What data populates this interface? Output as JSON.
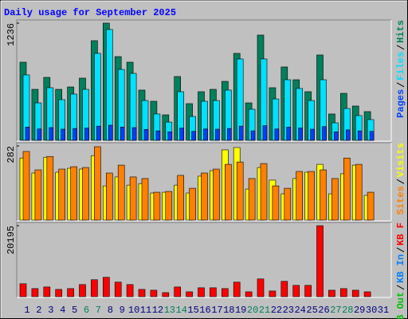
{
  "title": "Daily usage for September 2025",
  "chart_data": [
    {
      "type": "bar",
      "ylim": [
        0,
        1236
      ],
      "yticks": [
        1236
      ],
      "series": [
        {
          "name": "Hits",
          "color": "#00805c",
          "values": [
            824,
            538,
            664,
            538,
            563,
            656,
            1051,
            1236,
            883,
            824,
            530,
            412,
            269,
            673,
            387,
            513,
            538,
            622,
            917,
            395,
            1110,
            555,
            774,
            639,
            513,
            900,
            278,
            496,
            362,
            303,
            null
          ]
        },
        {
          "name": "Files",
          "color": "#00e0ff",
          "values": [
            690,
            395,
            555,
            429,
            488,
            538,
            917,
            1169,
            748,
            706,
            420,
            278,
            193,
            513,
            252,
            412,
            420,
            530,
            858,
            328,
            858,
            437,
            639,
            547,
            420,
            639,
            185,
            336,
            261,
            219,
            null
          ]
        },
        {
          "name": "Pages",
          "color": "#0040ff",
          "values": [
            140,
            120,
            135,
            118,
            125,
            130,
            150,
            160,
            140,
            135,
            115,
            100,
            90,
            130,
            95,
            120,
            118,
            125,
            150,
            100,
            155,
            120,
            140,
            130,
            118,
            145,
            90,
            110,
            100,
            95,
            null
          ]
        }
      ]
    },
    {
      "type": "bar",
      "ylim": [
        0,
        282
      ],
      "yticks": [
        282
      ],
      "series": [
        {
          "name": "Visits",
          "color": "#ffff00",
          "values": [
            236,
            179,
            239,
            182,
            197,
            194,
            245,
            130,
            164,
            133,
            139,
            103,
            106,
            133,
            103,
            167,
            188,
            267,
            276,
            118,
            200,
            152,
            100,
            158,
            182,
            212,
            100,
            176,
            209,
            94,
            null
          ]
        },
        {
          "name": "Sites",
          "color": "#ff8000",
          "values": [
            261,
            191,
            242,
            194,
            203,
            200,
            279,
            179,
            209,
            164,
            158,
            106,
            109,
            170,
            121,
            179,
            194,
            212,
            221,
            158,
            215,
            130,
            121,
            185,
            185,
            191,
            158,
            236,
            212,
            106,
            null
          ]
        }
      ]
    },
    {
      "type": "bar",
      "ylim": [
        0,
        20195
      ],
      "yticks": [
        20195
      ],
      "categories": [
        "1",
        "2",
        "3",
        "4",
        "5",
        "6",
        "7",
        "8",
        "9",
        "10",
        "11",
        "12",
        "13",
        "14",
        "15",
        "16",
        "17",
        "18",
        "19",
        "20",
        "21",
        "22",
        "23",
        "24",
        "25",
        "26",
        "27",
        "28",
        "29",
        "30",
        "31"
      ],
      "category_colors": [
        "#000080",
        "#000080",
        "#000080",
        "#000080",
        "#000080",
        "#00805c",
        "#00805c",
        "#000080",
        "#000080",
        "#000080",
        "#000080",
        "#000080",
        "#00805c",
        "#00805c",
        "#000080",
        "#000080",
        "#000080",
        "#000080",
        "#000080",
        "#00805c",
        "#00805c",
        "#000080",
        "#000080",
        "#000080",
        "#000080",
        "#000080",
        "#00805c",
        "#00805c",
        "#000080",
        "#000080",
        "#000080"
      ],
      "series": [
        {
          "name": "KB F",
          "color": "#ff0000",
          "values": [
            3672,
            2295,
            2754,
            2066,
            2295,
            3443,
            4820,
            5508,
            4131,
            3443,
            2066,
            1836,
            1148,
            2754,
            1377,
            2525,
            2525,
            2295,
            4131,
            1377,
            5049,
            1607,
            4361,
            3213,
            3213,
            20195,
            1836,
            2295,
            1836,
            1377,
            null
          ]
        },
        {
          "name": "KB In",
          "color": "#0080ff",
          "values": [
            0,
            0,
            0,
            0,
            0,
            0,
            0,
            0,
            0,
            0,
            0,
            0,
            0,
            0,
            0,
            0,
            0,
            0,
            0,
            0,
            0,
            0,
            0,
            0,
            0,
            0,
            0,
            0,
            0,
            0,
            null
          ]
        },
        {
          "name": "KB Out",
          "color": "#00c000",
          "values": [
            0,
            0,
            0,
            0,
            0,
            0,
            0,
            0,
            0,
            0,
            0,
            0,
            0,
            0,
            0,
            0,
            0,
            0,
            0,
            0,
            0,
            0,
            0,
            0,
            0,
            0,
            0,
            0,
            0,
            0,
            null
          ]
        }
      ]
    }
  ]
}
